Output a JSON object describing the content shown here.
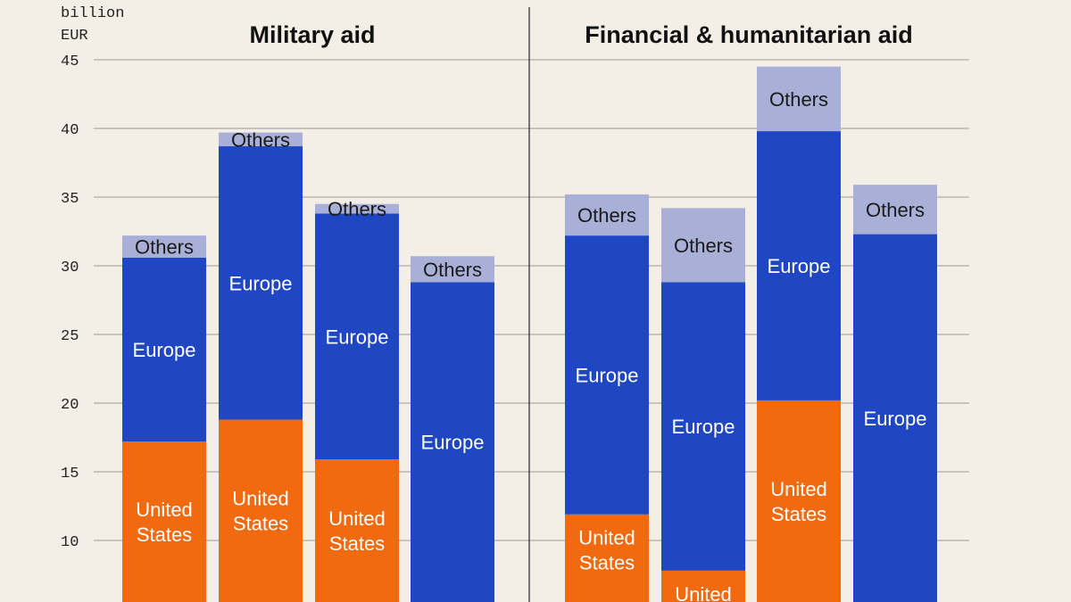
{
  "chart_data": {
    "type": "bar",
    "stacked": true,
    "unit_label": [
      "billion",
      "EUR"
    ],
    "ylim": [
      5,
      45
    ],
    "yticks": [
      10,
      15,
      20,
      25,
      30,
      35,
      40,
      45
    ],
    "grid": true,
    "colors": {
      "United States": "#f26a0f",
      "Europe": "#1f47c4",
      "Others": "#a9b0d8"
    },
    "segment_labels": {
      "United States": [
        "United",
        "States"
      ],
      "Europe": [
        "Europe"
      ],
      "Others": [
        "Others"
      ]
    },
    "panels": [
      {
        "title": "Military aid",
        "stacks": [
          {
            "United States": 17.2,
            "Europe": 13.4,
            "Others": 1.6
          },
          {
            "United States": 18.8,
            "Europe": 19.9,
            "Others": 1.0
          },
          {
            "United States": 15.9,
            "Europe": 17.9,
            "Others": 0.7
          },
          {
            "United States": 0,
            "Europe": 28.8,
            "Others": 1.9
          }
        ]
      },
      {
        "title": "Financial & humanitarian aid",
        "stacks": [
          {
            "United States": 11.9,
            "Europe": 20.3,
            "Others": 3.0
          },
          {
            "United States": 7.8,
            "Europe": 21.0,
            "Others": 5.4
          },
          {
            "United States": 20.2,
            "Europe": 19.6,
            "Others": 4.7
          },
          {
            "United States": 0,
            "Europe": 32.3,
            "Others": 3.6
          }
        ]
      }
    ]
  }
}
